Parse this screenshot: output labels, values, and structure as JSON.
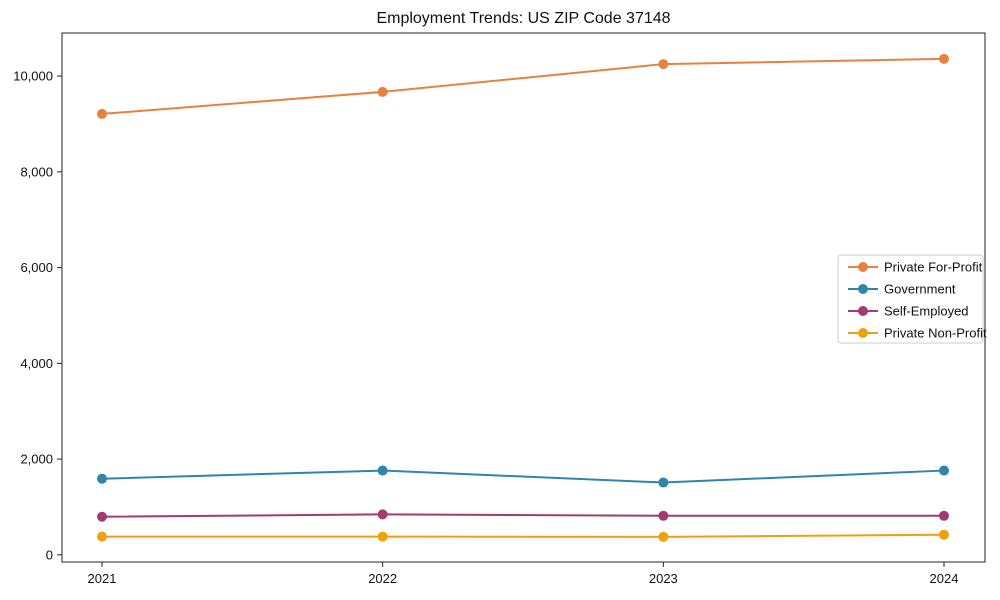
{
  "title": "Employment Trends: US ZIP Code 37148",
  "chart_data": {
    "type": "line",
    "x": [
      "2021",
      "2022",
      "2023",
      "2024"
    ],
    "xlabel": "",
    "ylabel": "",
    "yticks": [
      0,
      2000,
      4000,
      6000,
      8000,
      10000
    ],
    "ylim": [
      -150,
      10900
    ],
    "grid": false,
    "legend_position": "center right",
    "series": [
      {
        "name": "Private For-Profit",
        "color": "#e8813e",
        "values": [
          9210,
          9670,
          10250,
          10360
        ]
      },
      {
        "name": "Government",
        "color": "#2e86ab",
        "values": [
          1590,
          1760,
          1510,
          1760
        ]
      },
      {
        "name": "Self-Employed",
        "color": "#a23b72",
        "values": [
          795,
          845,
          815,
          815
        ]
      },
      {
        "name": "Private Non-Profit",
        "color": "#f0a00c",
        "values": [
          380,
          380,
          375,
          420
        ]
      }
    ]
  }
}
